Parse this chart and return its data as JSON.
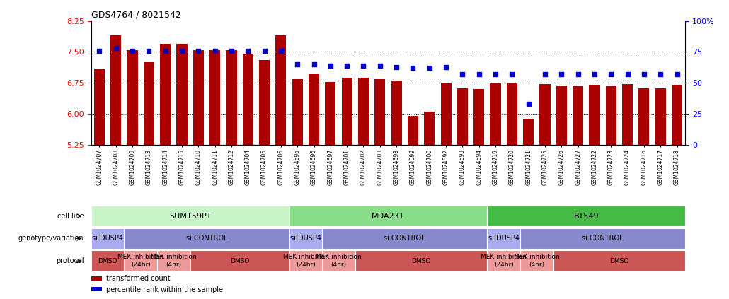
{
  "title": "GDS4764 / 8021542",
  "samples": [
    "GSM1024707",
    "GSM1024708",
    "GSM1024709",
    "GSM1024713",
    "GSM1024714",
    "GSM1024715",
    "GSM1024710",
    "GSM1024711",
    "GSM1024712",
    "GSM1024704",
    "GSM1024705",
    "GSM1024706",
    "GSM1024695",
    "GSM1024696",
    "GSM1024697",
    "GSM1024701",
    "GSM1024702",
    "GSM1024703",
    "GSM1024698",
    "GSM1024699",
    "GSM1024700",
    "GSM1024692",
    "GSM1024693",
    "GSM1024694",
    "GSM1024719",
    "GSM1024720",
    "GSM1024721",
    "GSM1024725",
    "GSM1024726",
    "GSM1024727",
    "GSM1024722",
    "GSM1024723",
    "GSM1024724",
    "GSM1024716",
    "GSM1024717",
    "GSM1024718"
  ],
  "bar_values": [
    7.1,
    7.9,
    7.55,
    7.25,
    7.7,
    7.7,
    7.55,
    7.55,
    7.55,
    7.45,
    7.3,
    7.9,
    6.85,
    6.98,
    6.78,
    6.88,
    6.88,
    6.85,
    6.8,
    5.95,
    6.05,
    6.75,
    6.62,
    6.6,
    6.75,
    6.75,
    5.88,
    6.72,
    6.68,
    6.68,
    6.7,
    6.68,
    6.72,
    6.62,
    6.62,
    6.7
  ],
  "percentile_values": [
    76,
    78,
    76,
    76,
    76,
    76,
    76,
    76,
    76,
    76,
    76,
    76,
    65,
    65,
    64,
    64,
    64,
    64,
    63,
    62,
    62,
    63,
    57,
    57,
    57,
    57,
    33,
    57,
    57,
    57,
    57,
    57,
    57,
    57,
    57,
    57
  ],
  "ylim_left": [
    5.25,
    8.25
  ],
  "ylim_right": [
    0,
    100
  ],
  "yticks_left": [
    5.25,
    6.0,
    6.75,
    7.5,
    8.25
  ],
  "yticks_right": [
    0,
    25,
    50,
    75,
    100
  ],
  "bar_color": "#aa0000",
  "percentile_color": "#0000cc",
  "cell_lines": [
    {
      "label": "SUM159PT",
      "start": 0,
      "end": 11,
      "color": "#c8f5c8"
    },
    {
      "label": "MDA231",
      "start": 12,
      "end": 23,
      "color": "#88dd88"
    },
    {
      "label": "BT549",
      "start": 24,
      "end": 35,
      "color": "#44bb44"
    }
  ],
  "genotype_groups": [
    {
      "label": "si DUSP4",
      "start": 0,
      "end": 1,
      "color": "#aaaaee"
    },
    {
      "label": "si CONTROL",
      "start": 2,
      "end": 11,
      "color": "#8888cc"
    },
    {
      "label": "si DUSP4",
      "start": 12,
      "end": 13,
      "color": "#aaaaee"
    },
    {
      "label": "si CONTROL",
      "start": 14,
      "end": 23,
      "color": "#8888cc"
    },
    {
      "label": "si DUSP4",
      "start": 24,
      "end": 25,
      "color": "#aaaaee"
    },
    {
      "label": "si CONTROL",
      "start": 26,
      "end": 35,
      "color": "#8888cc"
    }
  ],
  "protocol_groups": [
    {
      "label": "DMSO",
      "start": 0,
      "end": 1,
      "color": "#cc5555"
    },
    {
      "label": "MEK inhibition\n(24hr)",
      "start": 2,
      "end": 3,
      "color": "#ee9999"
    },
    {
      "label": "MEK inhibition\n(4hr)",
      "start": 4,
      "end": 5,
      "color": "#ee9999"
    },
    {
      "label": "DMSO",
      "start": 6,
      "end": 11,
      "color": "#cc5555"
    },
    {
      "label": "MEK inhibition\n(24hr)",
      "start": 12,
      "end": 13,
      "color": "#ee9999"
    },
    {
      "label": "MEK inhibition\n(4hr)",
      "start": 14,
      "end": 15,
      "color": "#ee9999"
    },
    {
      "label": "DMSO",
      "start": 16,
      "end": 23,
      "color": "#cc5555"
    },
    {
      "label": "MEK inhibition\n(24hr)",
      "start": 24,
      "end": 25,
      "color": "#ee9999"
    },
    {
      "label": "MEK inhibition\n(4hr)",
      "start": 26,
      "end": 27,
      "color": "#ee9999"
    },
    {
      "label": "DMSO",
      "start": 28,
      "end": 35,
      "color": "#cc5555"
    }
  ],
  "row_labels": [
    "cell line",
    "genotype/variation",
    "protocol"
  ],
  "legend_items": [
    {
      "label": "transformed count",
      "color": "#aa0000"
    },
    {
      "label": "percentile rank within the sample",
      "color": "#0000cc"
    }
  ]
}
